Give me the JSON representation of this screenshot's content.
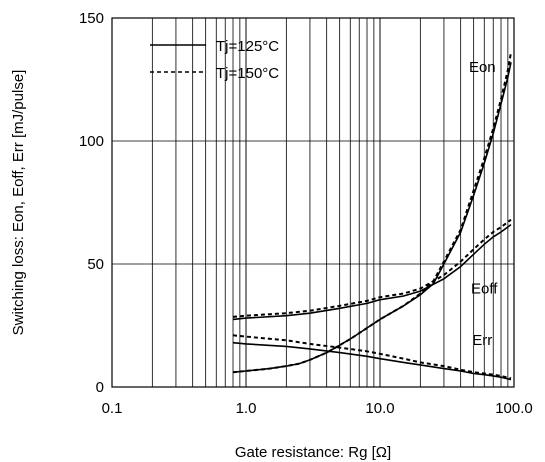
{
  "chart_data": {
    "type": "line",
    "xscale": "log",
    "xlim": [
      0.1,
      100
    ],
    "ylim": [
      0,
      150
    ],
    "grid": true,
    "xlabel": "Gate resistance: Rg [Ω]",
    "ylabel": "Switching loss: Eon, Eoff, Err [mJ/pulse]",
    "xticks": [
      {
        "value": 0.1,
        "label": "0.1"
      },
      {
        "value": 1,
        "label": "1.0"
      },
      {
        "value": 10,
        "label": "10.0"
      },
      {
        "value": 100,
        "label": "100.0"
      }
    ],
    "yticks": [
      {
        "value": 0,
        "label": "0"
      },
      {
        "value": 50,
        "label": "50"
      },
      {
        "value": 100,
        "label": "100"
      },
      {
        "value": 150,
        "label": "150"
      }
    ],
    "legend": {
      "placement": "top-left",
      "entries": [
        {
          "label": "Tj=125°C",
          "style": "solid"
        },
        {
          "label": "Tj=150°C",
          "style": "dashed"
        }
      ]
    },
    "curve_labels": [
      {
        "text": "Eon",
        "x": 58,
        "y": 128
      },
      {
        "text": "Eoff",
        "x": 60,
        "y": 38
      },
      {
        "text": "Err",
        "x": 58,
        "y": 17
      }
    ],
    "series": [
      {
        "curve": "Eon",
        "temp": "Tj=125°C",
        "style": "solid",
        "x": [
          0.8,
          1,
          1.5,
          2,
          2.5,
          3,
          4,
          5,
          6,
          8,
          10,
          15,
          20,
          25,
          30,
          40,
          50,
          60,
          70,
          80,
          90,
          95
        ],
        "y": [
          6,
          6.5,
          7.5,
          8.5,
          9.5,
          11,
          14,
          17,
          19.5,
          24,
          27.5,
          33,
          37.5,
          42,
          50,
          63,
          78,
          91,
          103,
          115,
          126,
          132
        ]
      },
      {
        "curve": "Eon",
        "temp": "Tj=150°C",
        "style": "dashed",
        "x": [
          0.8,
          1,
          1.5,
          2,
          2.5,
          3,
          4,
          5,
          6,
          8,
          10,
          15,
          20,
          25,
          30,
          40,
          50,
          60,
          70,
          80,
          90,
          95
        ],
        "y": [
          6,
          6.5,
          7.5,
          8.5,
          9.5,
          11,
          14,
          17,
          19.5,
          24,
          27.5,
          33,
          38,
          43,
          51,
          64,
          80,
          93,
          105,
          117,
          129,
          136
        ]
      },
      {
        "curve": "Eoff",
        "temp": "Tj=125°C",
        "style": "solid",
        "x": [
          0.8,
          1,
          2,
          3,
          5,
          8,
          10,
          15,
          20,
          30,
          40,
          50,
          60,
          70,
          80,
          95
        ],
        "y": [
          27.5,
          28,
          29,
          30,
          32,
          34,
          35.5,
          37,
          39,
          44,
          49,
          54,
          58,
          61,
          63,
          66
        ]
      },
      {
        "curve": "Eoff",
        "temp": "Tj=150°C",
        "style": "dashed",
        "x": [
          0.8,
          1,
          2,
          3,
          5,
          8,
          10,
          15,
          20,
          30,
          40,
          50,
          60,
          70,
          80,
          95
        ],
        "y": [
          28.5,
          29,
          30,
          31,
          33,
          35,
          36.5,
          38,
          40,
          45.5,
          51,
          56,
          60,
          63,
          65,
          68
        ]
      },
      {
        "curve": "Err",
        "temp": "Tj=125°C",
        "style": "solid",
        "x": [
          0.8,
          1,
          2,
          3,
          5,
          8,
          10,
          15,
          20,
          30,
          40,
          50,
          60,
          70,
          80,
          95
        ],
        "y": [
          18,
          17.5,
          16.5,
          15.5,
          14,
          12.5,
          11.5,
          10,
          9,
          7.5,
          6.5,
          5.5,
          5,
          4.5,
          4,
          3
        ]
      },
      {
        "curve": "Err",
        "temp": "Tj=150°C",
        "style": "dashed",
        "x": [
          0.8,
          1,
          2,
          3,
          5,
          8,
          10,
          15,
          20,
          30,
          40,
          50,
          60,
          70,
          80,
          95
        ],
        "y": [
          21,
          20.5,
          19,
          17.5,
          16,
          14.5,
          13.5,
          11.5,
          10,
          8.5,
          7,
          6,
          5.5,
          5,
          4.5,
          3.5
        ]
      }
    ],
    "colors": {
      "lines": "#000000",
      "grid": "#000000",
      "background": "#ffffff"
    }
  }
}
